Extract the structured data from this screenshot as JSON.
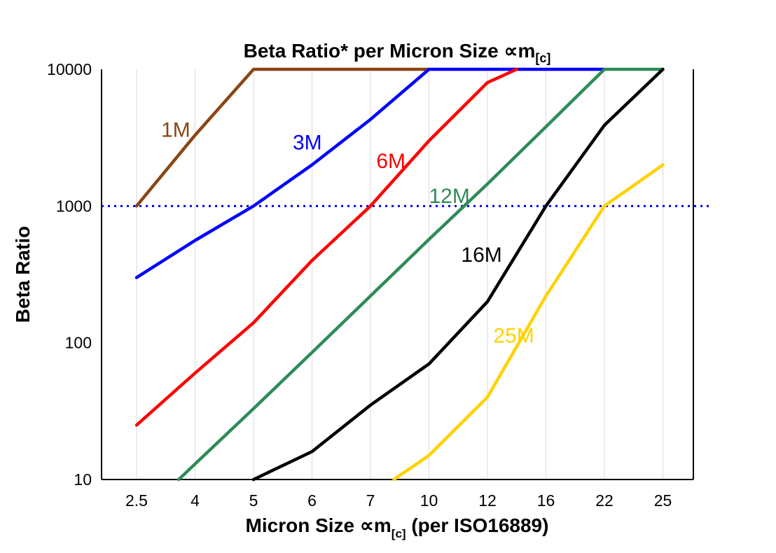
{
  "title": {
    "main": "Beta Ratio* per Micron Size ∝m",
    "subscript": "[c]"
  },
  "y_axis": {
    "label": "Beta Ratio"
  },
  "x_axis": {
    "label_pre": "Micron Size ∝m",
    "label_sub": "[c]",
    "label_post": " (per ISO16889)"
  },
  "chart_data": {
    "type": "line",
    "y_scale": "log",
    "ylim": [
      10,
      10000
    ],
    "y_ticks": [
      10000,
      1000,
      100,
      10
    ],
    "x_categories": [
      "2.5",
      "4",
      "5",
      "6",
      "7",
      "10",
      "12",
      "16",
      "22",
      "25"
    ],
    "grid": "vertical-only",
    "legend_position": "inline-labels",
    "title": "Beta Ratio* per Micron Size ∝m[c]",
    "xlabel": "Micron Size ∝m[c] (per ISO16889)",
    "ylabel": "Beta Ratio",
    "reference_line": {
      "y": 1000,
      "style": "dotted",
      "color": "#0000ee"
    },
    "series": [
      {
        "name": "1M",
        "color": "#8B4513",
        "points": [
          [
            0,
            1000
          ],
          [
            1,
            3300
          ],
          [
            2,
            10000
          ],
          [
            5,
            10000
          ]
        ],
        "label_at": [
          0.42,
          3200
        ]
      },
      {
        "name": "3M",
        "color": "#0000FF",
        "points": [
          [
            0,
            300
          ],
          [
            1,
            560
          ],
          [
            2,
            1000
          ],
          [
            3,
            2000
          ],
          [
            4,
            4300
          ],
          [
            5,
            10000
          ],
          [
            8,
            10000
          ]
        ],
        "label_at": [
          2.67,
          2600
        ]
      },
      {
        "name": "6M",
        "color": "#FF0000",
        "points": [
          [
            0,
            25
          ],
          [
            1,
            60
          ],
          [
            2,
            140
          ],
          [
            3,
            400
          ],
          [
            4,
            1000
          ],
          [
            5,
            3000
          ],
          [
            6,
            8000
          ],
          [
            6.5,
            10000
          ]
        ],
        "label_at": [
          4.1,
          1900
        ]
      },
      {
        "name": "12M",
        "color": "#2E8B57",
        "points": [
          [
            0.72,
            10
          ],
          [
            2,
            33
          ],
          [
            3,
            85
          ],
          [
            4,
            220
          ],
          [
            5,
            570
          ],
          [
            6,
            1450
          ],
          [
            7,
            3800
          ],
          [
            8,
            10000
          ],
          [
            9,
            10000
          ]
        ],
        "label_at": [
          5.0,
          1050
        ]
      },
      {
        "name": "16M",
        "color": "#000000",
        "points": [
          [
            2,
            10
          ],
          [
            3,
            16
          ],
          [
            4,
            35
          ],
          [
            5,
            70
          ],
          [
            6,
            200
          ],
          [
            7,
            1000
          ],
          [
            8,
            3900
          ],
          [
            9,
            10000
          ]
        ],
        "label_at": [
          5.55,
          390
        ]
      },
      {
        "name": "25M",
        "color": "#FFD200",
        "points": [
          [
            4.4,
            10
          ],
          [
            5,
            15
          ],
          [
            6,
            40
          ],
          [
            7,
            220
          ],
          [
            8,
            1000
          ],
          [
            9,
            2000
          ]
        ],
        "label_at": [
          6.1,
          100
        ]
      }
    ]
  }
}
